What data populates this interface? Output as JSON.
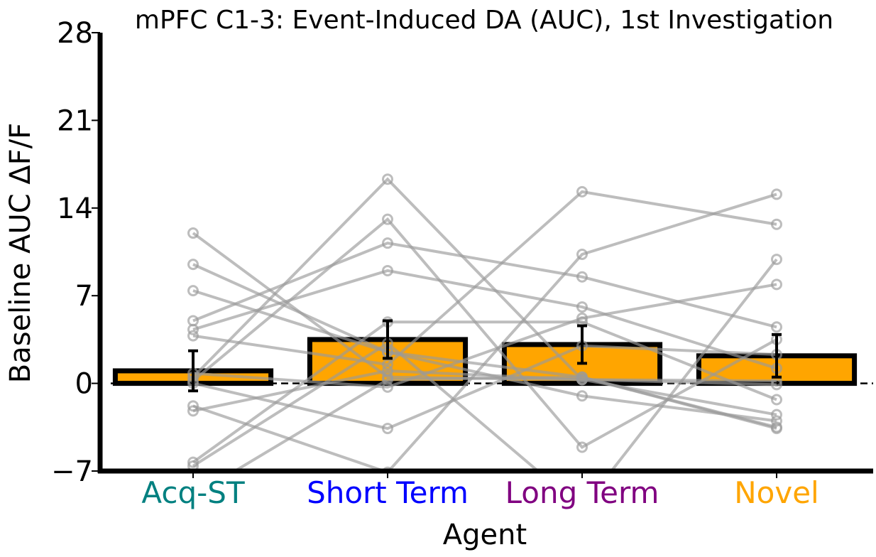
{
  "chart_data": {
    "type": "bar",
    "title": "mPFC C1-3: Event-Induced DA (AUC), 1st Investigation",
    "xlabel": "Agent",
    "ylabel": "Baseline AUC ΔF/F",
    "ylim": [
      -7,
      28
    ],
    "yticks": [
      -7,
      0,
      7,
      14,
      21,
      28
    ],
    "ytick_labels": [
      "−7",
      "0",
      "7",
      "14",
      "21",
      "28"
    ],
    "categories": [
      "Acq-ST",
      "Short Term",
      "Long Term",
      "Novel"
    ],
    "category_colors": [
      "#008080",
      "#0000ff",
      "#800080",
      "#ffa500"
    ],
    "bar_color": "#ffa500",
    "bar_edge_color": "#000000",
    "means": [
      1.0,
      3.5,
      3.1,
      2.2
    ],
    "errors": [
      1.6,
      1.5,
      1.5,
      1.7
    ],
    "reference_line_y": 0,
    "series": [
      {
        "values": [
          12.0,
          0.5,
          0.3,
          0.2
        ]
      },
      {
        "values": [
          9.5,
          2.5,
          0.5,
          -3.5
        ]
      },
      {
        "values": [
          7.4,
          2.5,
          -1.0,
          -3.0
        ]
      },
      {
        "values": [
          5.0,
          11.2,
          8.5,
          4.5
        ]
      },
      {
        "values": [
          4.3,
          9.0,
          6.1,
          1.2
        ]
      },
      {
        "values": [
          3.8,
          1.5,
          15.3,
          12.7
        ]
      },
      {
        "values": [
          0.5,
          16.3,
          0.3,
          -2.5
        ]
      },
      {
        "values": [
          0.2,
          13.1,
          -5.1,
          3.5
        ]
      },
      {
        "values": [
          -1.8,
          -7.1,
          10.3,
          15.1
        ]
      },
      {
        "values": [
          -2.2,
          1.0,
          0.3,
          -0.1
        ]
      },
      {
        "values": [
          -6.3,
          4.9,
          4.9,
          -1.3
        ]
      },
      {
        "values": [
          -6.6,
          3.2,
          -10.0,
          9.9
        ]
      },
      {
        "values": [
          0.8,
          -0.3,
          5.2,
          7.9
        ]
      },
      {
        "values": [
          0.0,
          -3.6,
          3.0,
          2.3
        ]
      },
      {
        "values": [
          -9.0,
          0.3,
          0.5,
          -3.6
        ]
      }
    ],
    "grid": false,
    "legend": "none"
  }
}
